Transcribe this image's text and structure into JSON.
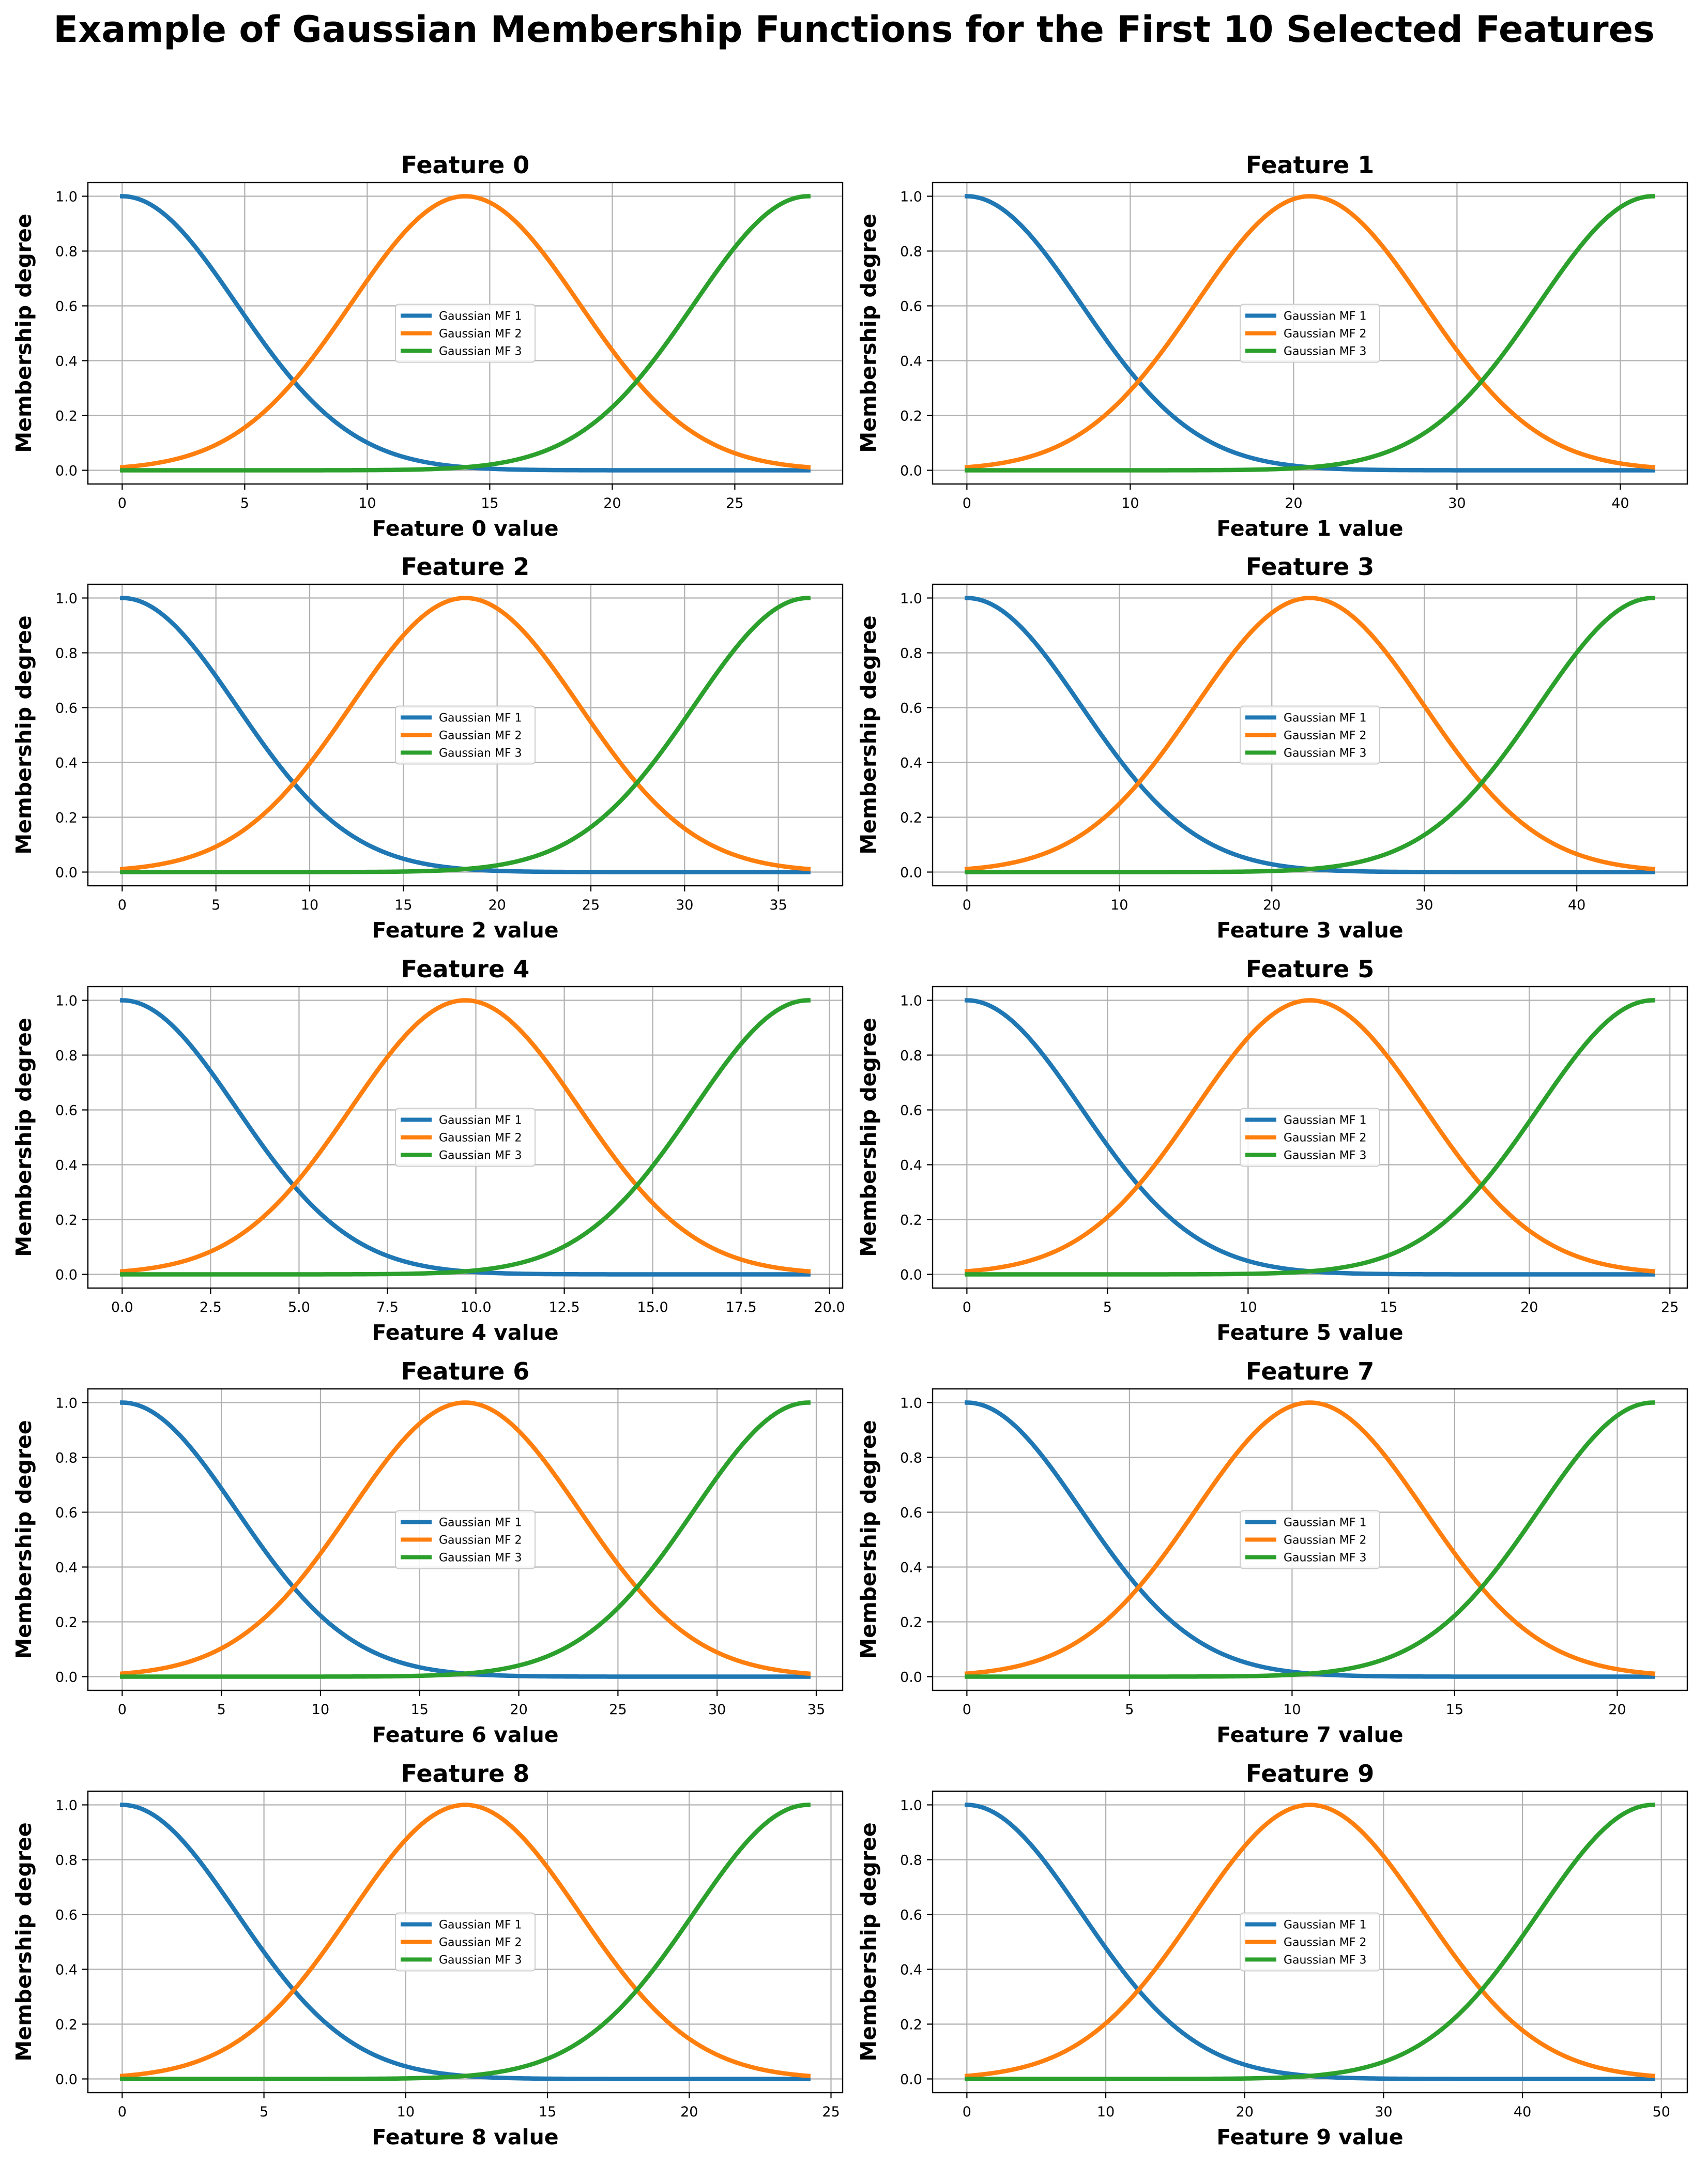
{
  "suptitle": "Example of Gaussian Membership Functions for the First 10 Selected Features",
  "colors": {
    "mf1": "#1f77b4",
    "mf2": "#ff7f0e",
    "mf3": "#2ca02c",
    "grid": "#b0b0b0",
    "axes": "#000000"
  },
  "chart_data": [
    {
      "type": "line",
      "title": "Feature 0",
      "xlabel": "Feature 0 value",
      "ylabel": "Membership degree",
      "xmax": 28,
      "xlim": [
        -1.4,
        29.4
      ],
      "ylim": [
        -0.05,
        1.05
      ],
      "xticks": [
        0,
        5,
        10,
        15,
        20,
        25
      ],
      "xtick_labels": [
        "0",
        "5",
        "10",
        "15",
        "20",
        "25"
      ],
      "yticks": [
        0,
        0.2,
        0.4,
        0.6,
        0.8,
        1.0
      ],
      "ytick_labels": [
        "0.0",
        "0.2",
        "0.4",
        "0.6",
        "0.8",
        "1.0"
      ],
      "grid": true,
      "legend_position": "center",
      "series": [
        {
          "name": "Gaussian MF 1",
          "center": 0,
          "sigma": 4.67
        },
        {
          "name": "Gaussian MF 2",
          "center": 14,
          "sigma": 4.67
        },
        {
          "name": "Gaussian MF 3",
          "center": 28,
          "sigma": 4.67
        }
      ]
    },
    {
      "type": "line",
      "title": "Feature 1",
      "xlabel": "Feature 1 value",
      "ylabel": "Membership degree",
      "xmax": 42,
      "xlim": [
        -2.1,
        44.1
      ],
      "ylim": [
        -0.05,
        1.05
      ],
      "xticks": [
        0,
        10,
        20,
        30,
        40
      ],
      "xtick_labels": [
        "0",
        "10",
        "20",
        "30",
        "40"
      ],
      "yticks": [
        0,
        0.2,
        0.4,
        0.6,
        0.8,
        1.0
      ],
      "ytick_labels": [
        "0.0",
        "0.2",
        "0.4",
        "0.6",
        "0.8",
        "1.0"
      ],
      "grid": true,
      "legend_position": "center",
      "series": [
        {
          "name": "Gaussian MF 1",
          "center": 0,
          "sigma": 7.0
        },
        {
          "name": "Gaussian MF 2",
          "center": 21,
          "sigma": 7.0
        },
        {
          "name": "Gaussian MF 3",
          "center": 42,
          "sigma": 7.0
        }
      ]
    },
    {
      "type": "line",
      "title": "Feature 2",
      "xlabel": "Feature 2 value",
      "ylabel": "Membership degree",
      "xmax": 36.6,
      "xlim": [
        -1.83,
        38.43
      ],
      "ylim": [
        -0.05,
        1.05
      ],
      "xticks": [
        0,
        5,
        10,
        15,
        20,
        25,
        30,
        35
      ],
      "xtick_labels": [
        "0",
        "5",
        "10",
        "15",
        "20",
        "25",
        "30",
        "35"
      ],
      "yticks": [
        0,
        0.2,
        0.4,
        0.6,
        0.8,
        1.0
      ],
      "ytick_labels": [
        "0.0",
        "0.2",
        "0.4",
        "0.6",
        "0.8",
        "1.0"
      ],
      "grid": true,
      "legend_position": "center",
      "series": [
        {
          "name": "Gaussian MF 1",
          "center": 0,
          "sigma": 6.1
        },
        {
          "name": "Gaussian MF 2",
          "center": 18.3,
          "sigma": 6.1
        },
        {
          "name": "Gaussian MF 3",
          "center": 36.6,
          "sigma": 6.1
        }
      ]
    },
    {
      "type": "line",
      "title": "Feature 3",
      "xlabel": "Feature 3 value",
      "ylabel": "Membership degree",
      "xmax": 45,
      "xlim": [
        -2.25,
        47.25
      ],
      "ylim": [
        -0.05,
        1.05
      ],
      "xticks": [
        0,
        10,
        20,
        30,
        40
      ],
      "xtick_labels": [
        "0",
        "10",
        "20",
        "30",
        "40"
      ],
      "yticks": [
        0,
        0.2,
        0.4,
        0.6,
        0.8,
        1.0
      ],
      "ytick_labels": [
        "0.0",
        "0.2",
        "0.4",
        "0.6",
        "0.8",
        "1.0"
      ],
      "grid": true,
      "legend_position": "center",
      "series": [
        {
          "name": "Gaussian MF 1",
          "center": 0,
          "sigma": 7.5
        },
        {
          "name": "Gaussian MF 2",
          "center": 22.5,
          "sigma": 7.5
        },
        {
          "name": "Gaussian MF 3",
          "center": 45,
          "sigma": 7.5
        }
      ]
    },
    {
      "type": "line",
      "title": "Feature 4",
      "xlabel": "Feature 4 value",
      "ylabel": "Membership degree",
      "xmax": 19.4,
      "xlim": [
        -0.97,
        20.37
      ],
      "ylim": [
        -0.05,
        1.05
      ],
      "xticks": [
        0,
        2.5,
        5,
        7.5,
        10,
        12.5,
        15,
        17.5,
        20
      ],
      "xtick_labels": [
        "0.0",
        "2.5",
        "5.0",
        "7.5",
        "10.0",
        "12.5",
        "15.0",
        "17.5",
        "20.0"
      ],
      "yticks": [
        0,
        0.2,
        0.4,
        0.6,
        0.8,
        1.0
      ],
      "ytick_labels": [
        "0.0",
        "0.2",
        "0.4",
        "0.6",
        "0.8",
        "1.0"
      ],
      "grid": true,
      "legend_position": "center",
      "series": [
        {
          "name": "Gaussian MF 1",
          "center": 0,
          "sigma": 3.23
        },
        {
          "name": "Gaussian MF 2",
          "center": 9.7,
          "sigma": 3.23
        },
        {
          "name": "Gaussian MF 3",
          "center": 19.4,
          "sigma": 3.23
        }
      ]
    },
    {
      "type": "line",
      "title": "Feature 5",
      "xlabel": "Feature 5 value",
      "ylabel": "Membership degree",
      "xmax": 24.4,
      "xlim": [
        -1.22,
        25.62
      ],
      "ylim": [
        -0.05,
        1.05
      ],
      "xticks": [
        0,
        5,
        10,
        15,
        20,
        25
      ],
      "xtick_labels": [
        "0",
        "5",
        "10",
        "15",
        "20",
        "25"
      ],
      "yticks": [
        0,
        0.2,
        0.4,
        0.6,
        0.8,
        1.0
      ],
      "ytick_labels": [
        "0.0",
        "0.2",
        "0.4",
        "0.6",
        "0.8",
        "1.0"
      ],
      "grid": true,
      "legend_position": "center",
      "series": [
        {
          "name": "Gaussian MF 1",
          "center": 0,
          "sigma": 4.07
        },
        {
          "name": "Gaussian MF 2",
          "center": 12.2,
          "sigma": 4.07
        },
        {
          "name": "Gaussian MF 3",
          "center": 24.4,
          "sigma": 4.07
        }
      ]
    },
    {
      "type": "line",
      "title": "Feature 6",
      "xlabel": "Feature 6 value",
      "ylabel": "Membership degree",
      "xmax": 34.6,
      "xlim": [
        -1.73,
        36.33
      ],
      "ylim": [
        -0.05,
        1.05
      ],
      "xticks": [
        0,
        5,
        10,
        15,
        20,
        25,
        30,
        35
      ],
      "xtick_labels": [
        "0",
        "5",
        "10",
        "15",
        "20",
        "25",
        "30",
        "35"
      ],
      "yticks": [
        0,
        0.2,
        0.4,
        0.6,
        0.8,
        1.0
      ],
      "ytick_labels": [
        "0.0",
        "0.2",
        "0.4",
        "0.6",
        "0.8",
        "1.0"
      ],
      "grid": true,
      "legend_position": "center",
      "series": [
        {
          "name": "Gaussian MF 1",
          "center": 0,
          "sigma": 5.77
        },
        {
          "name": "Gaussian MF 2",
          "center": 17.3,
          "sigma": 5.77
        },
        {
          "name": "Gaussian MF 3",
          "center": 34.6,
          "sigma": 5.77
        }
      ]
    },
    {
      "type": "line",
      "title": "Feature 7",
      "xlabel": "Feature 7 value",
      "ylabel": "Membership degree",
      "xmax": 21.1,
      "xlim": [
        -1.055,
        22.155
      ],
      "ylim": [
        -0.05,
        1.05
      ],
      "xticks": [
        0,
        5,
        10,
        15,
        20
      ],
      "xtick_labels": [
        "0",
        "5",
        "10",
        "15",
        "20"
      ],
      "yticks": [
        0,
        0.2,
        0.4,
        0.6,
        0.8,
        1.0
      ],
      "ytick_labels": [
        "0.0",
        "0.2",
        "0.4",
        "0.6",
        "0.8",
        "1.0"
      ],
      "grid": true,
      "legend_position": "center",
      "series": [
        {
          "name": "Gaussian MF 1",
          "center": 0,
          "sigma": 3.52
        },
        {
          "name": "Gaussian MF 2",
          "center": 10.55,
          "sigma": 3.52
        },
        {
          "name": "Gaussian MF 3",
          "center": 21.1,
          "sigma": 3.52
        }
      ]
    },
    {
      "type": "line",
      "title": "Feature 8",
      "xlabel": "Feature 8 value",
      "ylabel": "Membership degree",
      "xmax": 24.2,
      "xlim": [
        -1.21,
        25.41
      ],
      "ylim": [
        -0.05,
        1.05
      ],
      "xticks": [
        0,
        5,
        10,
        15,
        20,
        25
      ],
      "xtick_labels": [
        "0",
        "5",
        "10",
        "15",
        "20",
        "25"
      ],
      "yticks": [
        0,
        0.2,
        0.4,
        0.6,
        0.8,
        1.0
      ],
      "ytick_labels": [
        "0.0",
        "0.2",
        "0.4",
        "0.6",
        "0.8",
        "1.0"
      ],
      "grid": true,
      "legend_position": "center",
      "series": [
        {
          "name": "Gaussian MF 1",
          "center": 0,
          "sigma": 4.03
        },
        {
          "name": "Gaussian MF 2",
          "center": 12.1,
          "sigma": 4.03
        },
        {
          "name": "Gaussian MF 3",
          "center": 24.2,
          "sigma": 4.03
        }
      ]
    },
    {
      "type": "line",
      "title": "Feature 9",
      "xlabel": "Feature 9 value",
      "ylabel": "Membership degree",
      "xmax": 49.4,
      "xlim": [
        -2.47,
        51.87
      ],
      "ylim": [
        -0.05,
        1.05
      ],
      "xticks": [
        0,
        10,
        20,
        30,
        40,
        50
      ],
      "xtick_labels": [
        "0",
        "10",
        "20",
        "30",
        "40",
        "50"
      ],
      "yticks": [
        0,
        0.2,
        0.4,
        0.6,
        0.8,
        1.0
      ],
      "ytick_labels": [
        "0.0",
        "0.2",
        "0.4",
        "0.6",
        "0.8",
        "1.0"
      ],
      "grid": true,
      "legend_position": "center",
      "series": [
        {
          "name": "Gaussian MF 1",
          "center": 0,
          "sigma": 8.23
        },
        {
          "name": "Gaussian MF 2",
          "center": 24.7,
          "sigma": 8.23
        },
        {
          "name": "Gaussian MF 3",
          "center": 49.4,
          "sigma": 8.23
        }
      ]
    }
  ]
}
